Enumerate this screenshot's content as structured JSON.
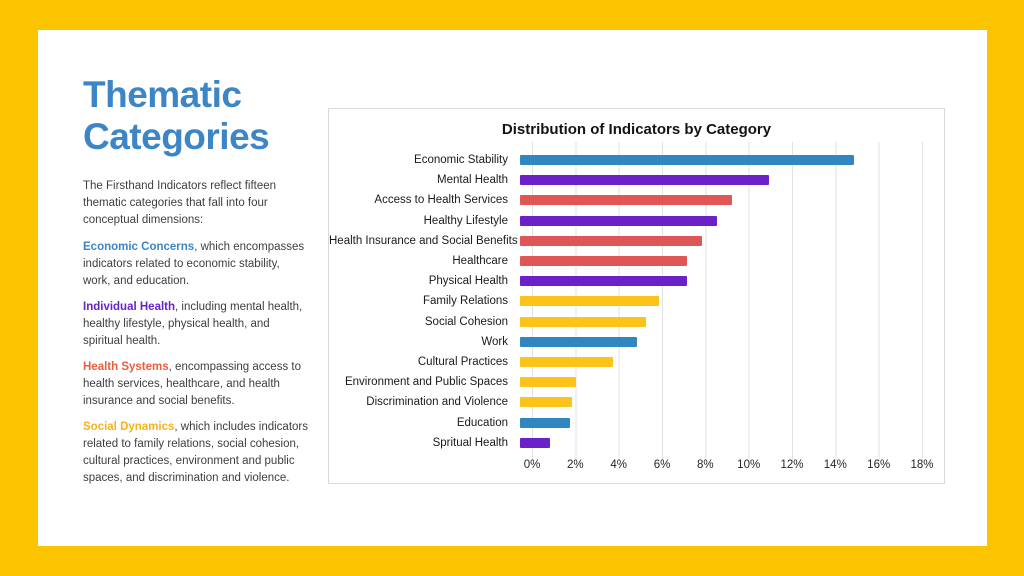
{
  "slide": {
    "title": "Thematic Categories",
    "intro": "The Firsthand Indicators reflect fifteen thematic categories that fall into four conceptual dimensions:",
    "paragraphs": [
      {
        "lead": "Economic Concerns",
        "lead_color": "#3C86C7",
        "text": ", which encompasses indicators related to economic stability, work, and education."
      },
      {
        "lead": "Individual Health",
        "lead_color": "#6A21C8",
        "text": ", including mental health, healthy lifestyle, physical health, and spiritual health."
      },
      {
        "lead": "Health Systems",
        "lead_color": "#EB5E3F",
        "text": ", encompassing access to health services, healthcare, and health insurance and social benefits."
      },
      {
        "lead": "Social Dynamics",
        "lead_color": "#F9B118",
        "text": ", which includes indicators related to family relations, social cohesion, cultural practices, environment and public spaces, and discrimination and violence."
      }
    ]
  },
  "colors": {
    "border": "#FCC300",
    "panel": "#FFFFFF",
    "title_blue": "#3C86C7",
    "bar_blue": "#3086C0",
    "bar_purple": "#6A21C8",
    "bar_red": "#E05656",
    "bar_yellow": "#FCC41A",
    "gridline": "#E2E2E2",
    "chart_border": "#D9D9D9",
    "body_text": "#3E3E3E",
    "chart_text": "#1A1A1A"
  },
  "chart_data": {
    "type": "bar",
    "orientation": "horizontal",
    "title": "Distribution of Indicators by Category",
    "categories": [
      "Economic Stability",
      "Mental Health",
      "Access to Health Services",
      "Healthy Lifestyle",
      "Health Insurance and Social Benefits",
      "Healthcare",
      "Physical Health",
      "Family Relations",
      "Social Cohesion",
      "Work",
      "Cultural Practices",
      "Environment and Public Spaces",
      "Discrimination and Violence",
      "Education",
      "Spritual Health"
    ],
    "values": [
      15.4,
      11.5,
      9.8,
      9.1,
      8.4,
      7.7,
      7.7,
      6.4,
      5.8,
      5.4,
      4.3,
      2.6,
      2.4,
      2.3,
      1.4
    ],
    "bar_color_keys": [
      "blue",
      "purple",
      "red",
      "purple",
      "red",
      "red",
      "purple",
      "yellow",
      "yellow",
      "blue",
      "yellow",
      "yellow",
      "yellow",
      "blue",
      "purple"
    ],
    "unit": "%",
    "xlim": [
      0,
      18
    ],
    "x_ticks": [
      "0%",
      "2%",
      "4%",
      "6%",
      "8%",
      "10%",
      "12%",
      "14%",
      "16%",
      "18%"
    ],
    "grid": true,
    "legend": false
  }
}
